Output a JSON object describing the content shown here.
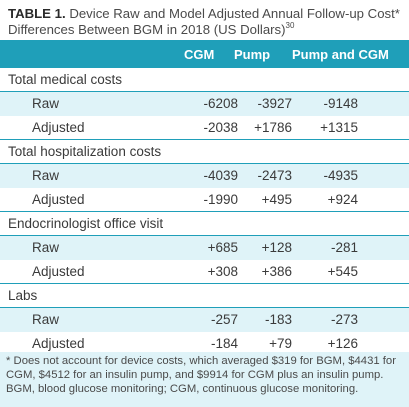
{
  "caption": {
    "label": "TABLE 1.",
    "text": "Device Raw and Model Adjusted Annual Follow-up Cost* Differences Between BGM in 2018 (US Dollars)",
    "ref": "30"
  },
  "columns": [
    "CGM",
    "Pump",
    "Pump and CGM"
  ],
  "sections": [
    {
      "title": "Total medical costs",
      "rows": [
        {
          "label": "Raw",
          "cgm": "-6208",
          "pump": "-3927",
          "both": "-9148"
        },
        {
          "label": "Adjusted",
          "cgm": "-2038",
          "pump": "+1786",
          "both": "+1315"
        }
      ]
    },
    {
      "title": "Total hospitalization costs",
      "rows": [
        {
          "label": "Raw",
          "cgm": "-4039",
          "pump": "-2473",
          "both": "-4935"
        },
        {
          "label": "Adjusted",
          "cgm": "-1990",
          "pump": "+495",
          "both": "+924"
        }
      ]
    },
    {
      "title": "Endocrinologist office visit",
      "rows": [
        {
          "label": "Raw",
          "cgm": "+685",
          "pump": "+128",
          "both": "-281"
        },
        {
          "label": "Adjusted",
          "cgm": "+308",
          "pump": "+386",
          "both": "+545"
        }
      ]
    },
    {
      "title": "Labs",
      "rows": [
        {
          "label": "Raw",
          "cgm": "-257",
          "pump": "-183",
          "both": "-273"
        },
        {
          "label": "Adjusted",
          "cgm": "-184",
          "pump": "+79",
          "both": "+126"
        }
      ]
    }
  ],
  "footnote": "* Does not account for device costs, which averaged $319 for BGM, $4431 for CGM, $4512 for an insulin pump, and $9914 for CGM plus an insulin pump. BGM, blood glucose monitoring; CGM, continuous glucose monitoring.",
  "colors": {
    "header": "#1f9fb9",
    "band": "#dff3f8"
  }
}
